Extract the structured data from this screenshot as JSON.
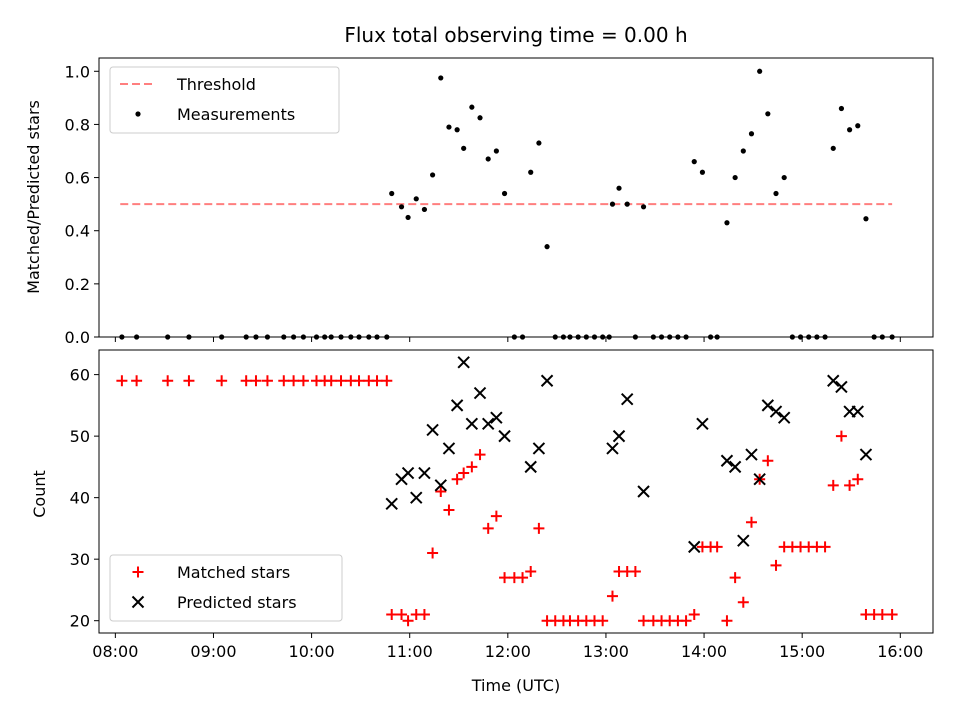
{
  "chart_data": [
    {
      "type": "scatter",
      "title": "Flux total observing time = 0.00 h",
      "xlabel": "",
      "ylabel": "Matched/Predicted stars",
      "xlim": [
        "07:50",
        "16:20"
      ],
      "ylim": [
        0,
        1.05
      ],
      "xticks": [
        "08:00",
        "09:00",
        "10:00",
        "11:00",
        "12:00",
        "13:00",
        "14:00",
        "15:00",
        "16:00"
      ],
      "yticks": [
        "0.0",
        "0.2",
        "0.4",
        "0.6",
        "0.8",
        "1.0"
      ],
      "legend": {
        "placement": "upper-left",
        "entries": [
          {
            "label": "Threshold",
            "marker": "dashed-line",
            "color": "#ff7f7f"
          },
          {
            "label": "Measurements",
            "marker": "dot",
            "color": "#000000"
          }
        ]
      },
      "threshold": {
        "value": 0.5,
        "x_start": "08:03",
        "x_end": "15:55",
        "color": "#ff7f7f"
      },
      "series": [
        {
          "name": "Measurements",
          "color": "#000000",
          "points": [
            [
              "08:04",
              0
            ],
            [
              "08:13",
              0
            ],
            [
              "08:32",
              0
            ],
            [
              "08:45",
              0
            ],
            [
              "09:05",
              0
            ],
            [
              "09:20",
              0
            ],
            [
              "09:26",
              0
            ],
            [
              "09:33",
              0
            ],
            [
              "09:43",
              0
            ],
            [
              "09:49",
              0
            ],
            [
              "09:55",
              0
            ],
            [
              "10:03",
              0
            ],
            [
              "10:08",
              0
            ],
            [
              "10:12",
              0
            ],
            [
              "10:18",
              0
            ],
            [
              "10:24",
              0
            ],
            [
              "10:29",
              0
            ],
            [
              "10:35",
              0
            ],
            [
              "10:40",
              0
            ],
            [
              "10:46",
              0
            ],
            [
              "10:49",
              0.54
            ],
            [
              "10:55",
              0.49
            ],
            [
              "10:59",
              0.45
            ],
            [
              "11:04",
              0.52
            ],
            [
              "11:09",
              0.48
            ],
            [
              "11:14",
              0.61
            ],
            [
              "11:19",
              0.975
            ],
            [
              "11:24",
              0.79
            ],
            [
              "11:29",
              0.78
            ],
            [
              "11:33",
              0.71
            ],
            [
              "11:38",
              0.865
            ],
            [
              "11:43",
              0.825
            ],
            [
              "11:48",
              0.67
            ],
            [
              "11:53",
              0.7
            ],
            [
              "11:58",
              0.54
            ],
            [
              "12:04",
              0
            ],
            [
              "12:09",
              0
            ],
            [
              "12:14",
              0.62
            ],
            [
              "12:19",
              0.73
            ],
            [
              "12:24",
              0.34
            ],
            [
              "12:29",
              0
            ],
            [
              "12:34",
              0
            ],
            [
              "12:38",
              0
            ],
            [
              "12:43",
              0
            ],
            [
              "12:48",
              0
            ],
            [
              "12:53",
              0
            ],
            [
              "12:58",
              0
            ],
            [
              "13:02",
              0
            ],
            [
              "13:04",
              0.5
            ],
            [
              "13:08",
              0.56
            ],
            [
              "13:13",
              0.5
            ],
            [
              "13:18",
              0
            ],
            [
              "13:23",
              0.49
            ],
            [
              "13:29",
              0
            ],
            [
              "13:34",
              0
            ],
            [
              "13:39",
              0
            ],
            [
              "13:44",
              0
            ],
            [
              "13:49",
              0
            ],
            [
              "13:54",
              0.66
            ],
            [
              "13:59",
              0.62
            ],
            [
              "14:04",
              0
            ],
            [
              "14:08",
              0
            ],
            [
              "14:14",
              0.43
            ],
            [
              "14:19",
              0.6
            ],
            [
              "14:24",
              0.7
            ],
            [
              "14:29",
              0.765
            ],
            [
              "14:34",
              1.0
            ],
            [
              "14:39",
              0.84
            ],
            [
              "14:44",
              0.54
            ],
            [
              "14:49",
              0.6
            ],
            [
              "14:54",
              0
            ],
            [
              "14:59",
              0
            ],
            [
              "15:04",
              0
            ],
            [
              "15:09",
              0
            ],
            [
              "15:14",
              0
            ],
            [
              "15:19",
              0.71
            ],
            [
              "15:24",
              0.86
            ],
            [
              "15:29",
              0.78
            ],
            [
              "15:34",
              0.795
            ],
            [
              "15:39",
              0.445
            ],
            [
              "15:44",
              0
            ],
            [
              "15:49",
              0
            ],
            [
              "15:55",
              0
            ]
          ]
        }
      ]
    },
    {
      "type": "scatter",
      "title": "",
      "xlabel": "Time (UTC)",
      "ylabel": "Count",
      "xlim": [
        "07:50",
        "16:20"
      ],
      "ylim": [
        18,
        64
      ],
      "xticks": [
        "08:00",
        "09:00",
        "10:00",
        "11:00",
        "12:00",
        "13:00",
        "14:00",
        "15:00",
        "16:00"
      ],
      "yticks": [
        "20",
        "30",
        "40",
        "50",
        "60"
      ],
      "legend": {
        "placement": "lower-left",
        "entries": [
          {
            "label": "Matched stars",
            "marker": "plus",
            "color": "#ff0000"
          },
          {
            "label": "Predicted stars",
            "marker": "x",
            "color": "#000000"
          }
        ]
      },
      "series": [
        {
          "name": "Matched stars",
          "marker": "plus",
          "color": "#ff0000",
          "points": [
            [
              "08:04",
              59
            ],
            [
              "08:13",
              59
            ],
            [
              "08:32",
              59
            ],
            [
              "08:45",
              59
            ],
            [
              "09:05",
              59
            ],
            [
              "09:20",
              59
            ],
            [
              "09:26",
              59
            ],
            [
              "09:33",
              59
            ],
            [
              "09:43",
              59
            ],
            [
              "09:49",
              59
            ],
            [
              "09:55",
              59
            ],
            [
              "10:03",
              59
            ],
            [
              "10:08",
              59
            ],
            [
              "10:12",
              59
            ],
            [
              "10:18",
              59
            ],
            [
              "10:24",
              59
            ],
            [
              "10:29",
              59
            ],
            [
              "10:35",
              59
            ],
            [
              "10:40",
              59
            ],
            [
              "10:46",
              59
            ],
            [
              "10:49",
              21
            ],
            [
              "10:55",
              21
            ],
            [
              "10:59",
              20
            ],
            [
              "11:04",
              21
            ],
            [
              "11:09",
              21
            ],
            [
              "11:14",
              31
            ],
            [
              "11:19",
              41
            ],
            [
              "11:24",
              38
            ],
            [
              "11:29",
              43
            ],
            [
              "11:33",
              44
            ],
            [
              "11:38",
              45
            ],
            [
              "11:43",
              47
            ],
            [
              "11:48",
              35
            ],
            [
              "11:53",
              37
            ],
            [
              "11:58",
              27
            ],
            [
              "12:04",
              27
            ],
            [
              "12:09",
              27
            ],
            [
              "12:14",
              28
            ],
            [
              "12:19",
              35
            ],
            [
              "12:24",
              20
            ],
            [
              "12:29",
              20
            ],
            [
              "12:34",
              20
            ],
            [
              "12:38",
              20
            ],
            [
              "12:43",
              20
            ],
            [
              "12:48",
              20
            ],
            [
              "12:53",
              20
            ],
            [
              "12:58",
              20
            ],
            [
              "13:04",
              24
            ],
            [
              "13:08",
              28
            ],
            [
              "13:13",
              28
            ],
            [
              "13:18",
              28
            ],
            [
              "13:23",
              20
            ],
            [
              "13:29",
              20
            ],
            [
              "13:34",
              20
            ],
            [
              "13:39",
              20
            ],
            [
              "13:44",
              20
            ],
            [
              "13:49",
              20
            ],
            [
              "13:54",
              21
            ],
            [
              "13:59",
              32
            ],
            [
              "14:04",
              32
            ],
            [
              "14:08",
              32
            ],
            [
              "14:14",
              20
            ],
            [
              "14:19",
              27
            ],
            [
              "14:24",
              23
            ],
            [
              "14:29",
              36
            ],
            [
              "14:34",
              43
            ],
            [
              "14:39",
              46
            ],
            [
              "14:44",
              29
            ],
            [
              "14:49",
              32
            ],
            [
              "14:54",
              32
            ],
            [
              "14:59",
              32
            ],
            [
              "15:04",
              32
            ],
            [
              "15:09",
              32
            ],
            [
              "15:14",
              32
            ],
            [
              "15:19",
              42
            ],
            [
              "15:24",
              50
            ],
            [
              "15:29",
              42
            ],
            [
              "15:34",
              43
            ],
            [
              "15:39",
              21
            ],
            [
              "15:44",
              21
            ],
            [
              "15:49",
              21
            ],
            [
              "15:55",
              21
            ]
          ]
        },
        {
          "name": "Predicted stars",
          "marker": "x",
          "color": "#000000",
          "points": [
            [
              "10:49",
              39
            ],
            [
              "10:55",
              43
            ],
            [
              "10:59",
              44
            ],
            [
              "11:04",
              40
            ],
            [
              "11:09",
              44
            ],
            [
              "11:14",
              51
            ],
            [
              "11:19",
              42
            ],
            [
              "11:24",
              48
            ],
            [
              "11:29",
              55
            ],
            [
              "11:33",
              62
            ],
            [
              "11:38",
              52
            ],
            [
              "11:43",
              57
            ],
            [
              "11:48",
              52
            ],
            [
              "11:53",
              53
            ],
            [
              "11:58",
              50
            ],
            [
              "12:14",
              45
            ],
            [
              "12:19",
              48
            ],
            [
              "12:24",
              59
            ],
            [
              "13:04",
              48
            ],
            [
              "13:08",
              50
            ],
            [
              "13:13",
              56
            ],
            [
              "13:23",
              41
            ],
            [
              "13:54",
              32
            ],
            [
              "13:59",
              52
            ],
            [
              "14:14",
              46
            ],
            [
              "14:19",
              45
            ],
            [
              "14:24",
              33
            ],
            [
              "14:29",
              47
            ],
            [
              "14:34",
              43
            ],
            [
              "14:39",
              55
            ],
            [
              "14:44",
              54
            ],
            [
              "14:49",
              53
            ],
            [
              "15:19",
              59
            ],
            [
              "15:24",
              58
            ],
            [
              "15:29",
              54
            ],
            [
              "15:34",
              54
            ],
            [
              "15:39",
              47
            ]
          ]
        }
      ]
    }
  ]
}
